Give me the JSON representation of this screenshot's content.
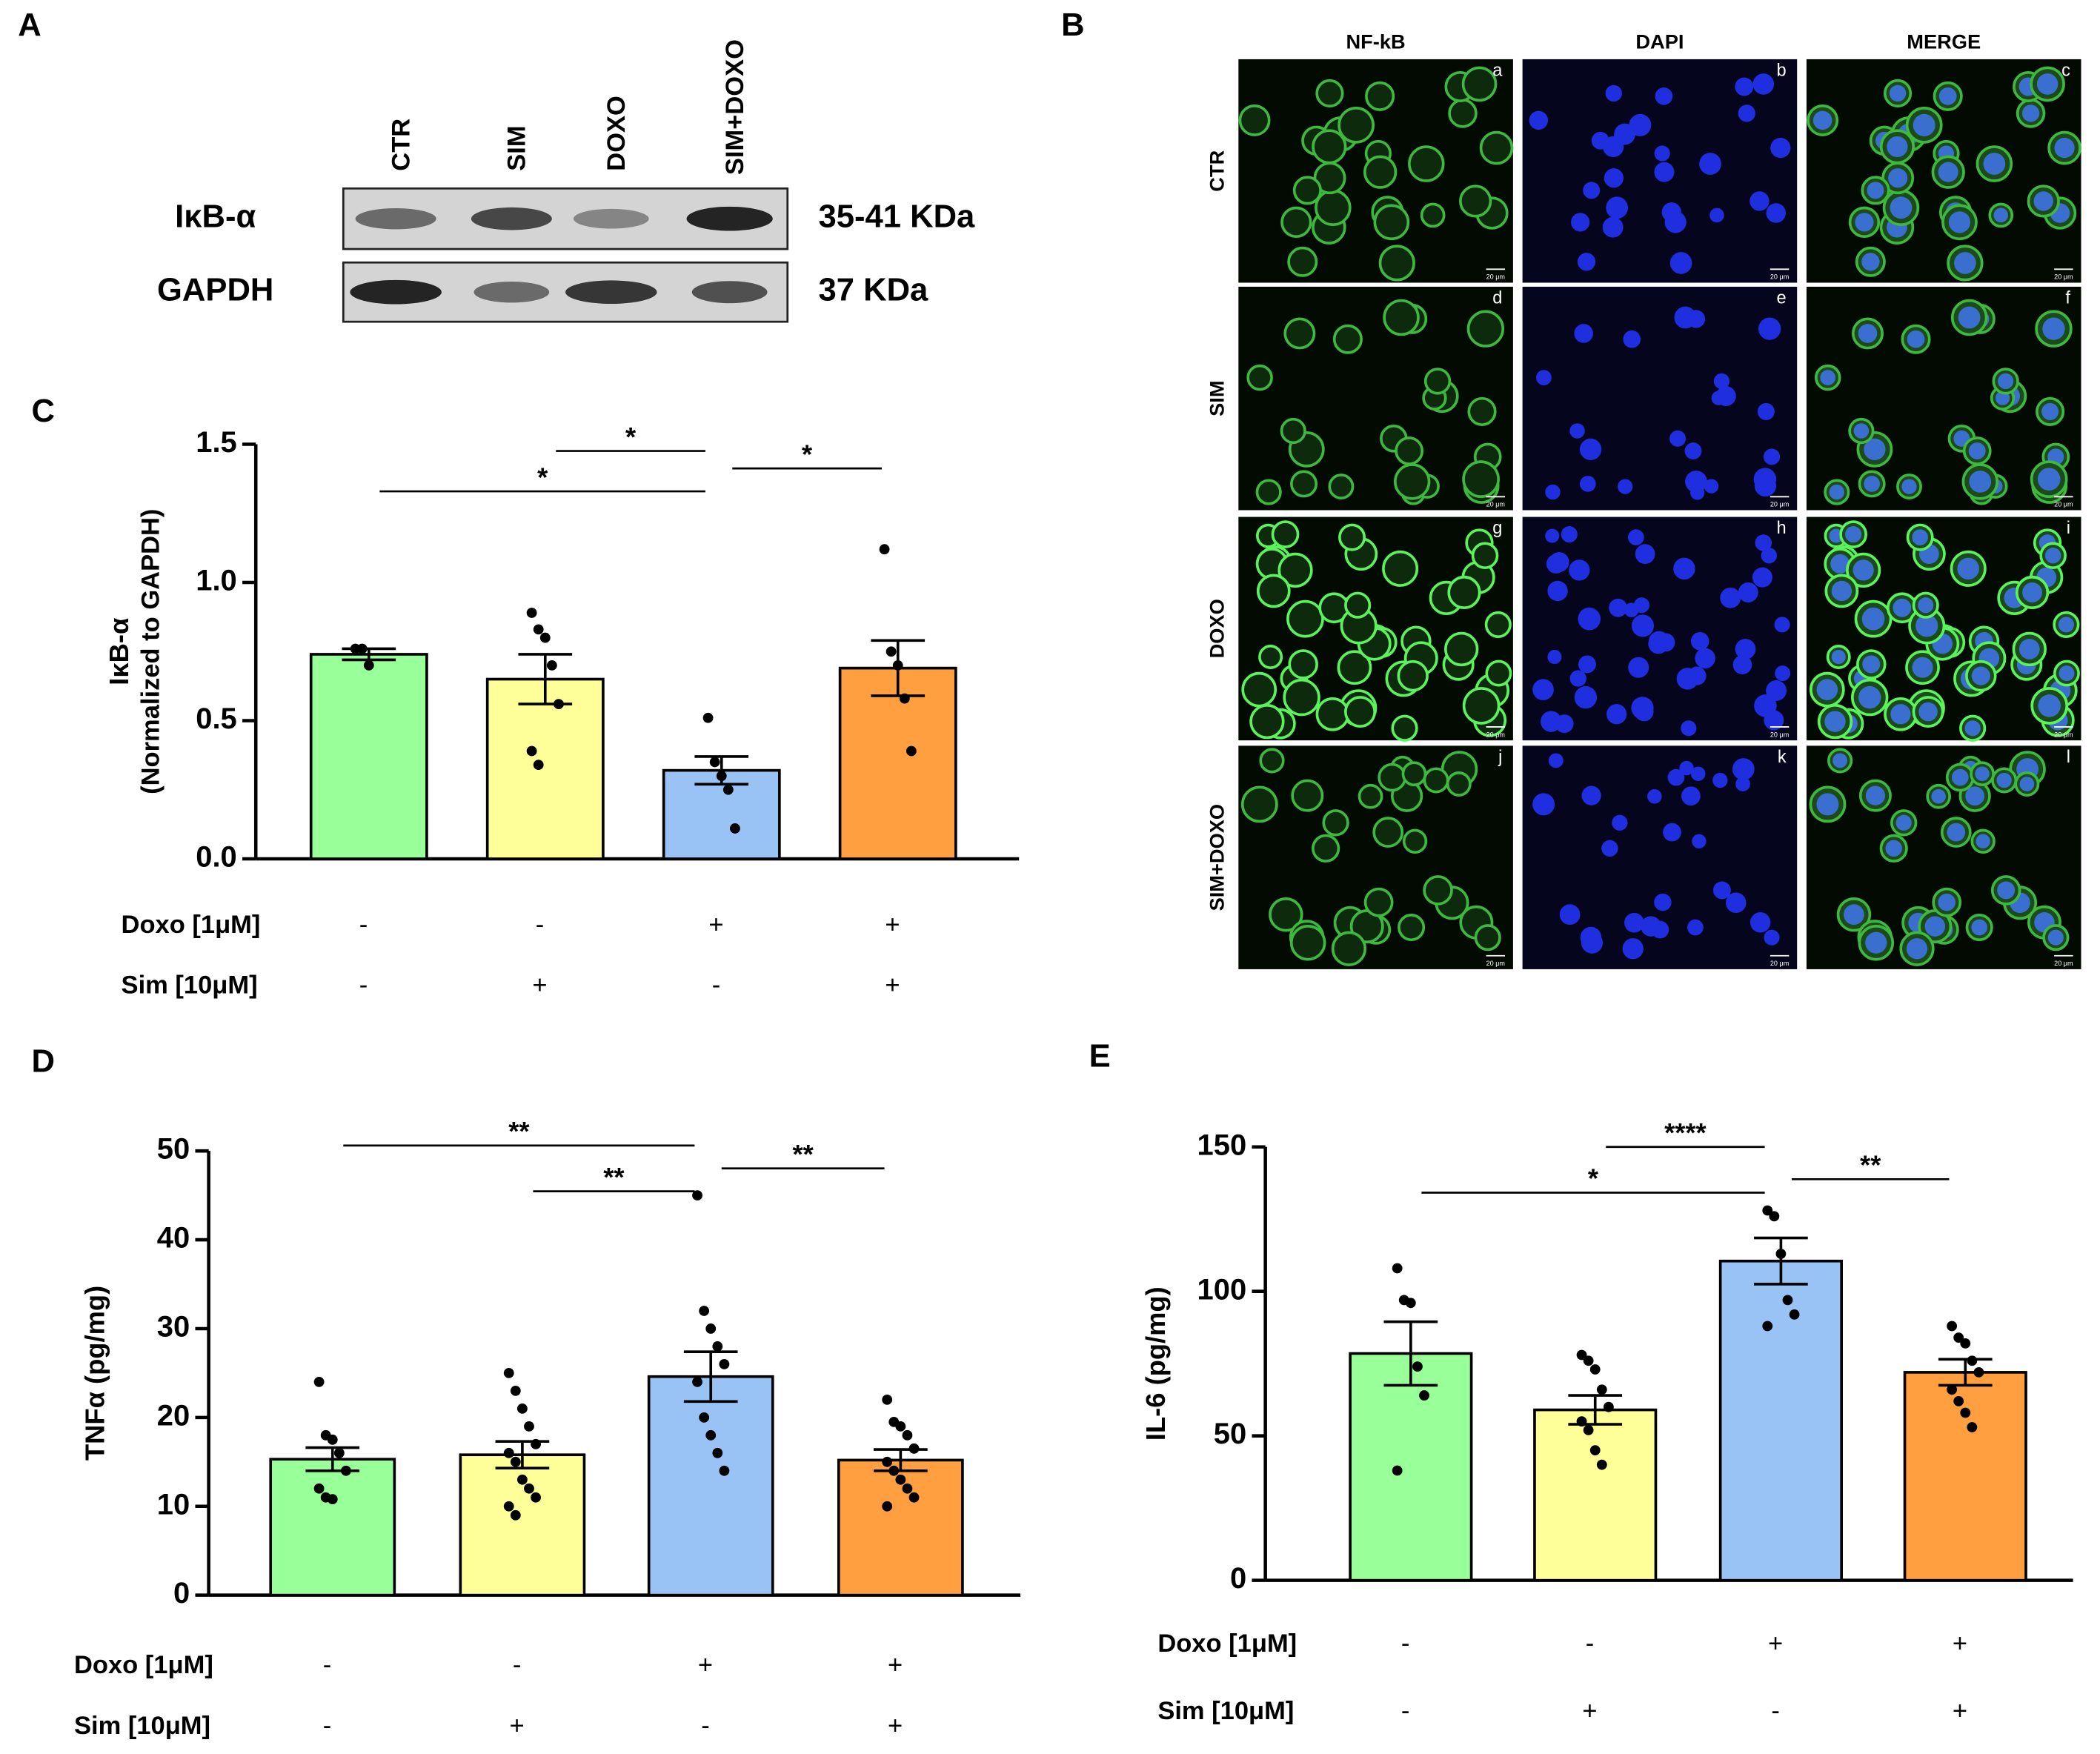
{
  "figure": {
    "labels": [
      "A",
      "B",
      "C",
      "D",
      "E"
    ]
  },
  "western_blot": {
    "lanes": [
      "CTR",
      "SIM",
      "DOXO",
      "SIM+DOXO"
    ],
    "rows": [
      {
        "label": "IκB-α",
        "size": "35-41 KDa"
      },
      {
        "label": "GAPDH",
        "size": "37 KDa"
      }
    ]
  },
  "microscopy": {
    "columns": [
      "NF-kB",
      "DAPI",
      "MERGE"
    ],
    "rows": [
      "CTR",
      "SIM",
      "DOXO",
      "SIM+DOXO"
    ],
    "panels": [
      "a",
      "b",
      "c",
      "d",
      "e",
      "f",
      "g",
      "h",
      "i",
      "j",
      "k",
      "l"
    ],
    "scale_bar": "20 μm"
  },
  "chart_data": [
    {
      "type": "bar",
      "ylabel": [
        "IκB-α",
        "(Normalized to GAPDH)"
      ],
      "colors": [
        "#99ff99",
        "#ffff99",
        "#99c2f5",
        "#ff9f40"
      ],
      "values": [
        0.74,
        0.65,
        0.32,
        0.69
      ],
      "errors": [
        0.02,
        0.09,
        0.05,
        0.1
      ],
      "points": [
        [
          0.76,
          0.76,
          0.7
        ],
        [
          0.89,
          0.83,
          0.8,
          0.7,
          0.56,
          0.39,
          0.34
        ],
        [
          0.51,
          0.35,
          0.3,
          0.25,
          0.11
        ],
        [
          1.12,
          0.75,
          0.7,
          0.58,
          0.39
        ]
      ],
      "ylim": [
        0,
        1.5
      ],
      "yticks": [
        {
          "value": 0,
          "label": "0.0"
        },
        0.5,
        {
          "value": 1,
          "label": "1.0"
        },
        1.5
      ],
      "significance": [
        "*",
        "*",
        "*"
      ],
      "treatments": [
        {
          "label": "Doxo [1μM]",
          "signs": [
            "-",
            "-",
            "+",
            "+"
          ]
        },
        {
          "label": "Sim [10μM]",
          "signs": [
            "-",
            "+",
            "-",
            "+"
          ]
        }
      ]
    },
    {
      "type": "bar",
      "ylabel": [
        "TNFα (pg/mg)"
      ],
      "colors": [
        "#99ff99",
        "#ffff99",
        "#99c2f5",
        "#ff9f40"
      ],
      "values": [
        15.3,
        15.8,
        24.6,
        15.2
      ],
      "errors": [
        1.3,
        1.5,
        2.8,
        1.2
      ],
      "points": [
        [
          24,
          18,
          17.5,
          16,
          14,
          12,
          11,
          10.8
        ],
        [
          25,
          23,
          21,
          19,
          17,
          16,
          15,
          13,
          12,
          11,
          10,
          9
        ],
        [
          45,
          32,
          30,
          28,
          26,
          24,
          20,
          18,
          16,
          14
        ],
        [
          22,
          19.5,
          19,
          18,
          16.5,
          15,
          14,
          13,
          12,
          11,
          10
        ]
      ],
      "ylim": [
        0,
        50
      ],
      "yticks": [
        0,
        10,
        20,
        30,
        40,
        50
      ],
      "significance": [
        "**",
        "**",
        "**"
      ],
      "treatments": [
        {
          "label": "Doxo [1μM]",
          "signs": [
            "-",
            "-",
            "+",
            "+"
          ]
        },
        {
          "label": "Sim [10μM]",
          "signs": [
            "-",
            "+",
            "-",
            "+"
          ]
        }
      ]
    },
    {
      "type": "bar",
      "ylabel": [
        "IL-6 (pg/mg)"
      ],
      "colors": [
        "#99ff99",
        "#ffff99",
        "#99c2f5",
        "#ff9f40"
      ],
      "values": [
        78.5,
        59,
        110.5,
        72
      ],
      "errors": [
        11,
        5,
        8,
        4.5
      ],
      "points": [
        [
          108,
          97,
          96,
          74,
          64,
          38
        ],
        [
          78,
          76,
          73,
          66,
          60,
          55,
          52,
          45,
          40
        ],
        [
          128,
          126,
          113,
          97,
          92,
          88
        ],
        [
          88,
          84,
          82,
          76,
          72,
          66,
          62,
          58,
          53
        ]
      ],
      "ylim": [
        0,
        150
      ],
      "yticks": [
        0,
        50,
        100,
        150
      ],
      "significance": [
        "****",
        "*",
        "**"
      ],
      "treatments": [
        {
          "label": "Doxo [1μM]",
          "signs": [
            "-",
            "-",
            "+",
            "+"
          ]
        },
        {
          "label": "Sim [10μM]",
          "signs": [
            "-",
            "+",
            "-",
            "+"
          ]
        }
      ]
    }
  ]
}
